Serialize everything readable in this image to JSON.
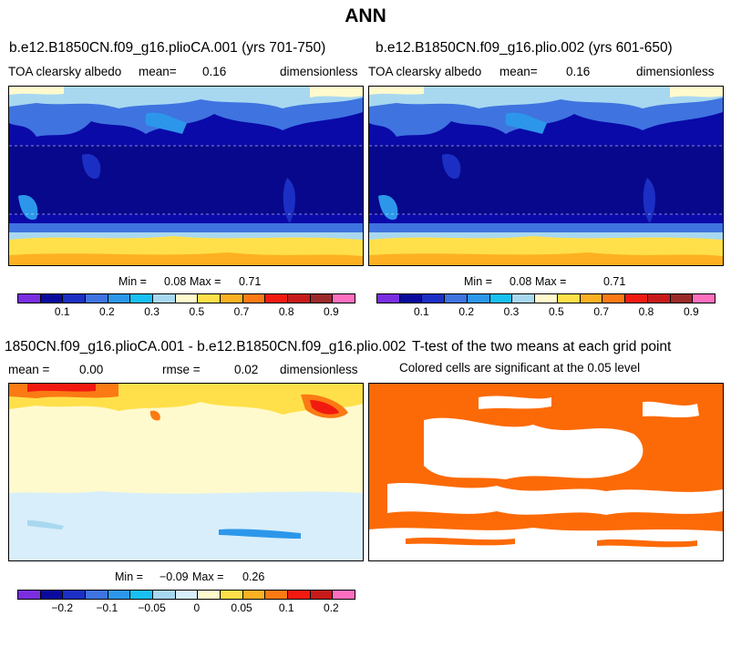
{
  "title": "ANN",
  "panels": {
    "tl": {
      "case": "b.e12.B1850CN.f09_g16.plioCA.001 (yrs 701-750)",
      "variable": "TOA clearsky albedo",
      "mean_label": "mean=",
      "mean": "0.16",
      "units": "dimensionless",
      "min_label": "Min =",
      "min": "0.08",
      "max_label": "Max =",
      "max": "0.71"
    },
    "tr": {
      "case": "b.e12.B1850CN.f09_g16.plio.002 (yrs 601-650)",
      "variable": "TOA clearsky albedo",
      "mean_label": "mean=",
      "mean": "0.16",
      "units": "dimensionless",
      "min_label": "Min =",
      "min": "0.08",
      "max_label": "Max =",
      "max": "0.71"
    },
    "bl": {
      "case": "1850CN.f09_g16.plioCA.001 - b.e12.B1850CN.f09_g16.plio.002",
      "mean_label": "mean =",
      "mean": "0.00",
      "rmse_label": "rmse =",
      "rmse": "0.02",
      "units": "dimensionless",
      "min_label": "Min =",
      "min": "−0.09",
      "max_label": "Max =",
      "max": "0.26"
    },
    "br": {
      "title": "T-test of the two means at each grid point",
      "subtitle": "Colored cells are significant at the 0.05 level"
    }
  },
  "colorbar_abs": {
    "colors": [
      "#7a2ee0",
      "#0a0a9e",
      "#1c2fc4",
      "#3f73e0",
      "#2c97ea",
      "#18c0f4",
      "#a8d8f0",
      "#fffacd",
      "#ffe04a",
      "#fdb122",
      "#fb7a14",
      "#f21a10",
      "#c81a1a",
      "#9c2a2a",
      "#ff6fbf"
    ],
    "labels": [
      "0.1",
      "0.2",
      "0.3",
      "0.5",
      "0.7",
      "0.8",
      "0.9"
    ]
  },
  "colorbar_diff": {
    "colors": [
      "#7a2ee0",
      "#0a0a9e",
      "#1c2fc4",
      "#3f73e0",
      "#2c97ea",
      "#18c0f4",
      "#a8d8f0",
      "#d8eefa",
      "#fffacd",
      "#ffe04a",
      "#fdb122",
      "#fb7a14",
      "#f21a10",
      "#c81a1a",
      "#ff6fbf"
    ],
    "labels": [
      "−0.2",
      "−0.1",
      "−0.05",
      "0",
      "0.05",
      "0.1",
      "0.2"
    ]
  },
  "colors": {
    "ocean_albedo": "#0a0aa8",
    "ttest_significant": "#fb6a06",
    "diff_neutral": "#d8eefa"
  }
}
